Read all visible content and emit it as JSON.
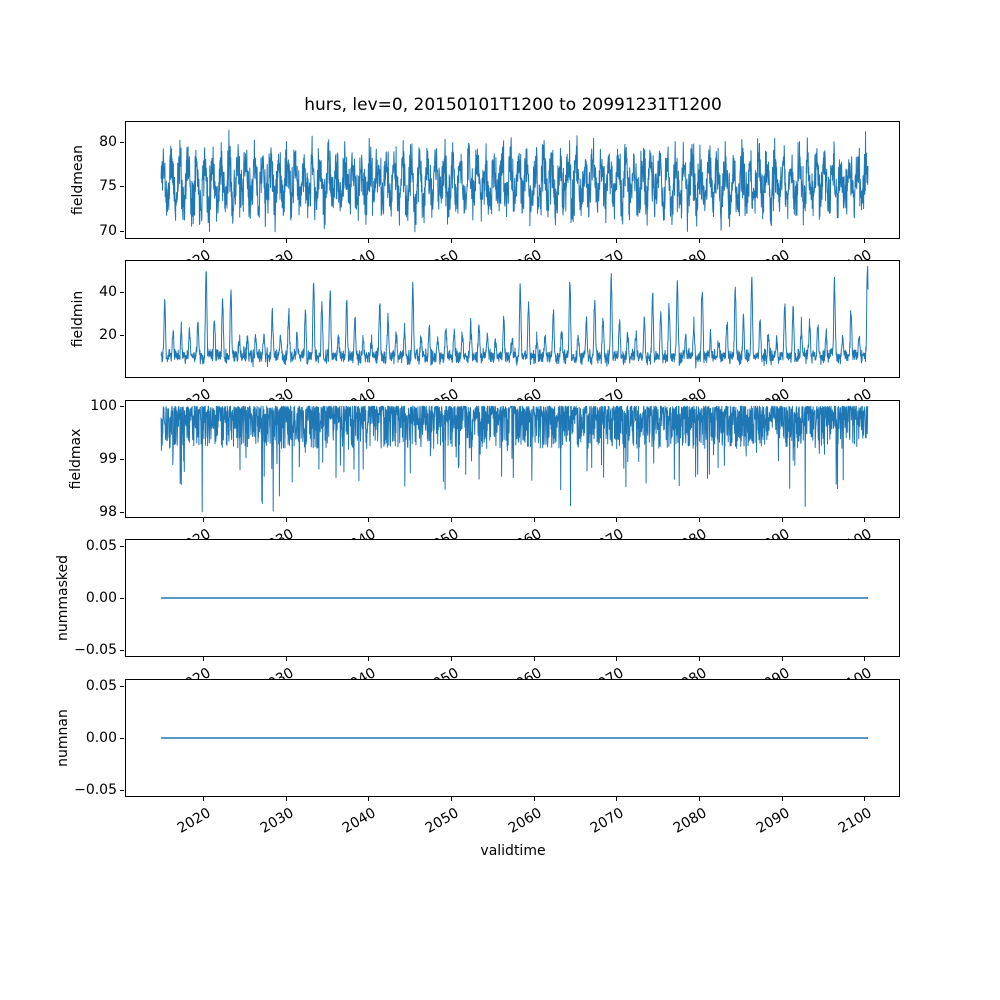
{
  "figure": {
    "title": "hurs, lev=0, 20150101T1200 to 20991231T1200",
    "background": "#ffffff",
    "line_color": "#1f77b4"
  },
  "x_axis": {
    "label": "validtime",
    "tick_labels": [
      "2020",
      "2030",
      "2040",
      "2050",
      "2060",
      "2070",
      "2080",
      "2090",
      "2100"
    ],
    "tick_values": [
      2020,
      2030,
      2040,
      2050,
      2060,
      2070,
      2080,
      2090,
      2100
    ],
    "xlim": [
      2010.75,
      2104.25
    ],
    "data_start": 2015.0,
    "data_end": 2100.5,
    "tick_rotation_deg": 30
  },
  "chart_data": [
    {
      "type": "line",
      "ylabel": "fieldmean",
      "ytick_labels": [
        "70",
        "75",
        "80"
      ],
      "ytick_values": [
        70,
        75,
        80
      ],
      "ylim": [
        69.2,
        82.2
      ],
      "n_points": 2600,
      "summary": {
        "pattern": "dense noisy annual cycle",
        "mean": 75.4,
        "min": 69.9,
        "max": 81.6
      },
      "gen": {
        "kind": "seasonal_noise",
        "seed": 11,
        "base": 75.4,
        "seasonal_amp": 2.1,
        "noise_sd": 1.5,
        "clamp": [
          69.9,
          81.6
        ]
      }
    },
    {
      "type": "line",
      "ylabel": "fieldmin",
      "ytick_labels": [
        "20",
        "40"
      ],
      "ytick_values": [
        20,
        40
      ],
      "ylim": [
        0.5,
        54.5
      ],
      "n_points": 2600,
      "summary": {
        "pattern": "low band with tall annual spikes",
        "base_band": [
          5,
          18
        ],
        "min": 4,
        "max": 52
      },
      "gen": {
        "kind": "spiky",
        "seed": 22,
        "base": 8,
        "base_rand": 4,
        "phase": -1.2,
        "spike_pow": 3,
        "year_amp_min": 8,
        "year_amp_range": 36,
        "noise_sd": 1.2,
        "clamp": [
          4,
          52
        ]
      }
    },
    {
      "type": "line",
      "ylabel": "fieldmax",
      "ytick_labels": [
        "98",
        "99",
        "100"
      ],
      "ytick_values": [
        98,
        99,
        100
      ],
      "ylim": [
        97.9,
        100.1
      ],
      "n_points": 2600,
      "summary": {
        "pattern": "saturated at 100 with downward spikes",
        "min": 98.0,
        "max": 100.0
      },
      "gen": {
        "kind": "ceiling",
        "seed": 33,
        "ceiling": 100,
        "depth": 0.8,
        "depth_pow": 2.2,
        "spike_prob": 0.05,
        "spike_depth": 1.2,
        "clamp": [
          98.0,
          100.0
        ]
      }
    },
    {
      "type": "line",
      "ylabel": "nummasked",
      "ytick_labels": [
        "−0.05",
        "0.00",
        "0.05"
      ],
      "ytick_values": [
        -0.05,
        0.0,
        0.05
      ],
      "ylim": [
        -0.056,
        0.056
      ],
      "constant_value": 0.0,
      "summary": {
        "pattern": "constant zero line"
      }
    },
    {
      "type": "line",
      "ylabel": "numnan",
      "ytick_labels": [
        "−0.05",
        "0.00",
        "0.05"
      ],
      "ytick_values": [
        -0.05,
        0.0,
        0.05
      ],
      "ylim": [
        -0.056,
        0.056
      ],
      "constant_value": 0.0,
      "summary": {
        "pattern": "constant zero line"
      }
    }
  ]
}
